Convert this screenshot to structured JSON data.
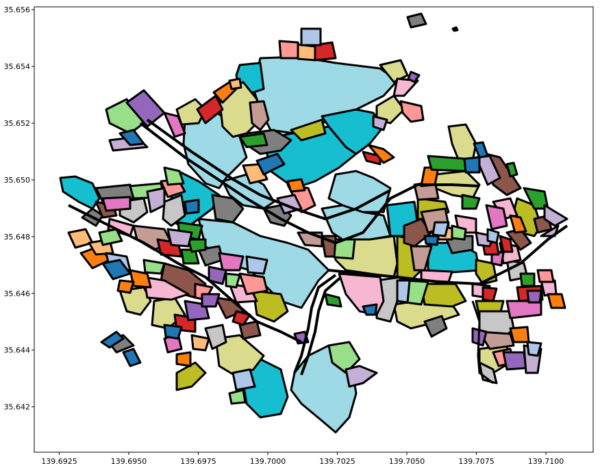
{
  "figure": {
    "x_ticks": [
      "139.6925",
      "139.6950",
      "139.6975",
      "139.7000",
      "139.7025",
      "139.7050",
      "139.7075",
      "139.7100"
    ],
    "y_ticks": [
      "35.656",
      "35.654",
      "35.652",
      "35.650",
      "35.648",
      "35.646",
      "35.644",
      "35.642"
    ]
  },
  "chart_data": {
    "type": "choropleth",
    "xlim": [
      139.6916,
      139.7117
    ],
    "ylim": [
      35.6404,
      35.6561
    ],
    "x_ticks": [
      139.6925,
      139.695,
      139.6975,
      139.7,
      139.7025,
      139.705,
      139.7075,
      139.71
    ],
    "y_ticks": [
      35.656,
      35.654,
      35.652,
      35.65,
      35.648,
      35.646,
      35.644,
      35.642
    ],
    "grid": false,
    "legend": "none",
    "edgecolor": "#000000",
    "palette": [
      "#1f77b4",
      "#ff7f0e",
      "#2ca02c",
      "#d62728",
      "#9467bd",
      "#8c564b",
      "#e377c2",
      "#7f7f7f",
      "#bcbd22",
      "#17becf",
      "#aec7e8",
      "#ffbb78",
      "#98df8a",
      "#ff9896",
      "#c5b0d5",
      "#c49c94",
      "#f7b6d2",
      "#c7c7c7",
      "#dbdb8d",
      "#9edae5"
    ]
  }
}
